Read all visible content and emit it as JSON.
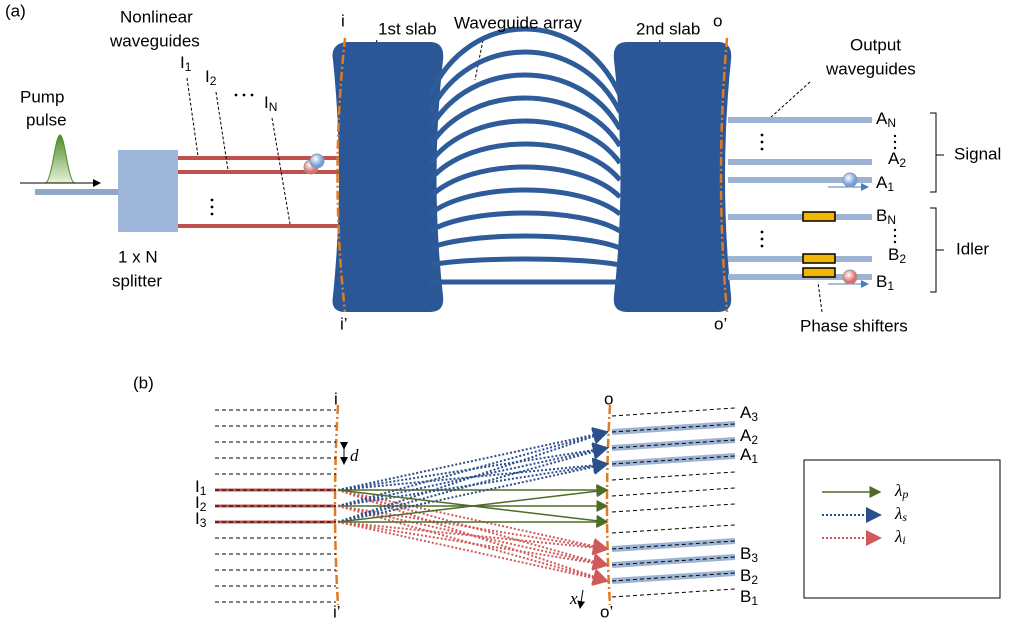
{
  "panel_a": {
    "label": "(a)",
    "pump": [
      "Pump",
      "pulse"
    ],
    "nonlinear": [
      "Nonlinear",
      "waveguides"
    ],
    "inputs": [
      {
        "text": "I",
        "sub": "1"
      },
      {
        "text": "I",
        "sub": "2"
      },
      {
        "text": "I",
        "sub": "N"
      }
    ],
    "splitter": [
      "1 x N",
      "splitter"
    ],
    "slab1": "1st slab",
    "array": "Waveguide array",
    "slab2": "2nd slab",
    "output": [
      "Output",
      "waveguides"
    ],
    "planes": [
      "i",
      "i’",
      "o",
      "o’"
    ],
    "signals": [
      {
        "text": "A",
        "sub": "N"
      },
      {
        "text": "A",
        "sub": "2"
      },
      {
        "text": "A",
        "sub": "1"
      }
    ],
    "idlers": [
      {
        "text": "B",
        "sub": "N"
      },
      {
        "text": "B",
        "sub": "2"
      },
      {
        "text": "B",
        "sub": "1"
      }
    ],
    "signal": "Signal",
    "idler": "Idler",
    "shifters": "Phase shifters"
  },
  "panel_b": {
    "label": "(b)",
    "planes": [
      "i",
      "i’",
      "o",
      "o’"
    ],
    "d": "d",
    "x": "x",
    "inputs": [
      {
        "text": "I",
        "sub": "1"
      },
      {
        "text": "I",
        "sub": "2"
      },
      {
        "text": "I",
        "sub": "3"
      }
    ],
    "signals": [
      {
        "text": "A",
        "sub": "3"
      },
      {
        "text": "A",
        "sub": "2"
      },
      {
        "text": "A",
        "sub": "1"
      }
    ],
    "idlers": [
      {
        "text": "B",
        "sub": "3"
      },
      {
        "text": "B",
        "sub": "2"
      },
      {
        "text": "B",
        "sub": "1"
      }
    ],
    "legend": [
      {
        "text": "λ",
        "sub": "p"
      },
      {
        "text": "λ",
        "sub": "s"
      },
      {
        "text": "λ",
        "sub": "i"
      }
    ]
  }
}
